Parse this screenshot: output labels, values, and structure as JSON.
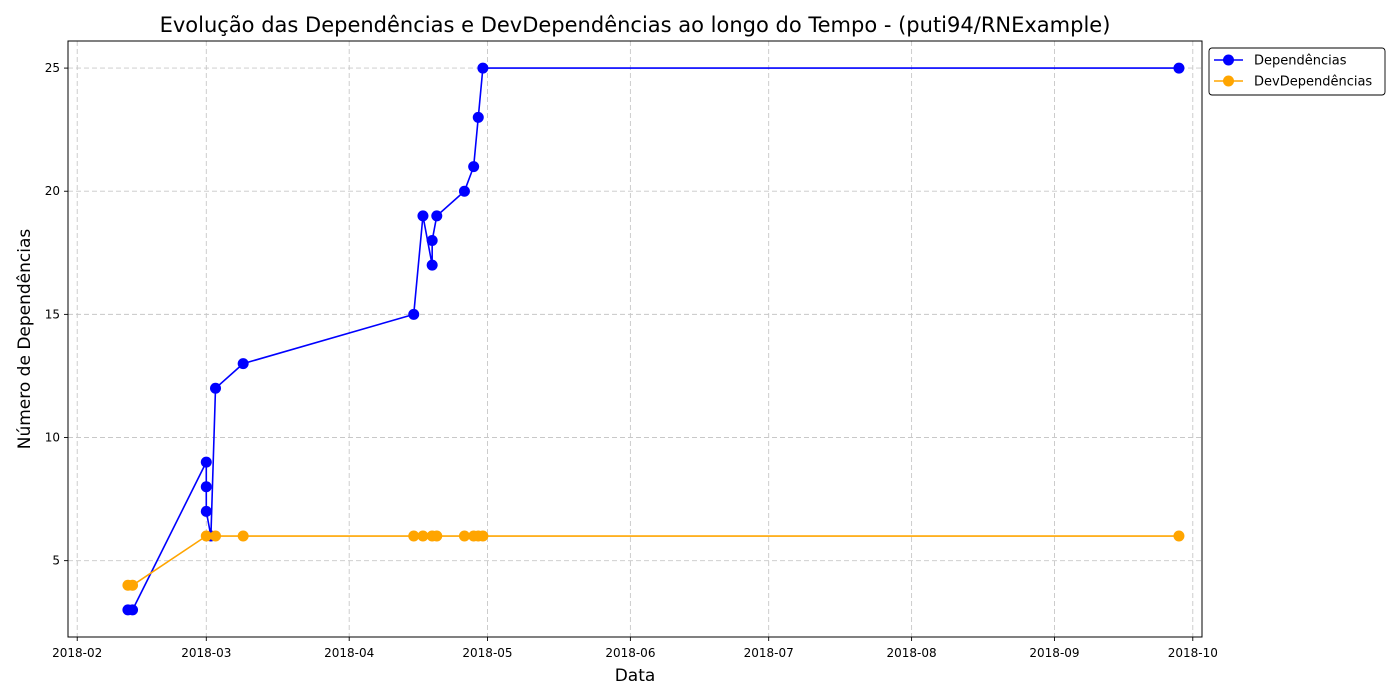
{
  "chart_data": {
    "type": "line",
    "title": "Evolução das Dependências e DevDependências ao longo do Tempo - (puti94/RNExample)",
    "xlabel": "Data",
    "ylabel": "Número de Dependências",
    "x_ticks": [
      "2018-02",
      "2018-03",
      "2018-04",
      "2018-05",
      "2018-06",
      "2018-07",
      "2018-08",
      "2018-09",
      "2018-10"
    ],
    "y_ticks": [
      5,
      10,
      15,
      20,
      25
    ],
    "xlim": [
      "2018-01-30",
      "2018-10-03"
    ],
    "ylim": [
      1.9,
      26.1
    ],
    "grid": true,
    "legend_position": "upper right, outside plot",
    "series": [
      {
        "name": "Dependências",
        "color": "#0000ff",
        "points": [
          {
            "x": "2018-02-12",
            "y": 3
          },
          {
            "x": "2018-02-13",
            "y": 3
          },
          {
            "x": "2018-03-01",
            "y": 9
          },
          {
            "x": "2018-03-01",
            "y": 8
          },
          {
            "x": "2018-03-01",
            "y": 7
          },
          {
            "x": "2018-03-02",
            "y": 6
          },
          {
            "x": "2018-03-03",
            "y": 12
          },
          {
            "x": "2018-03-09",
            "y": 13
          },
          {
            "x": "2018-04-15",
            "y": 15
          },
          {
            "x": "2018-04-17",
            "y": 19
          },
          {
            "x": "2018-04-19",
            "y": 17
          },
          {
            "x": "2018-04-19",
            "y": 18
          },
          {
            "x": "2018-04-20",
            "y": 19
          },
          {
            "x": "2018-04-26",
            "y": 20
          },
          {
            "x": "2018-04-28",
            "y": 21
          },
          {
            "x": "2018-04-29",
            "y": 23
          },
          {
            "x": "2018-04-30",
            "y": 25
          },
          {
            "x": "2018-09-28",
            "y": 25
          }
        ]
      },
      {
        "name": "DevDependências",
        "color": "#ffa500",
        "points": [
          {
            "x": "2018-02-12",
            "y": 4
          },
          {
            "x": "2018-02-13",
            "y": 4
          },
          {
            "x": "2018-03-01",
            "y": 6
          },
          {
            "x": "2018-03-03",
            "y": 6
          },
          {
            "x": "2018-03-09",
            "y": 6
          },
          {
            "x": "2018-04-15",
            "y": 6
          },
          {
            "x": "2018-04-17",
            "y": 6
          },
          {
            "x": "2018-04-19",
            "y": 6
          },
          {
            "x": "2018-04-20",
            "y": 6
          },
          {
            "x": "2018-04-26",
            "y": 6
          },
          {
            "x": "2018-04-28",
            "y": 6
          },
          {
            "x": "2018-04-29",
            "y": 6
          },
          {
            "x": "2018-04-30",
            "y": 6
          },
          {
            "x": "2018-09-28",
            "y": 6
          }
        ]
      }
    ]
  }
}
